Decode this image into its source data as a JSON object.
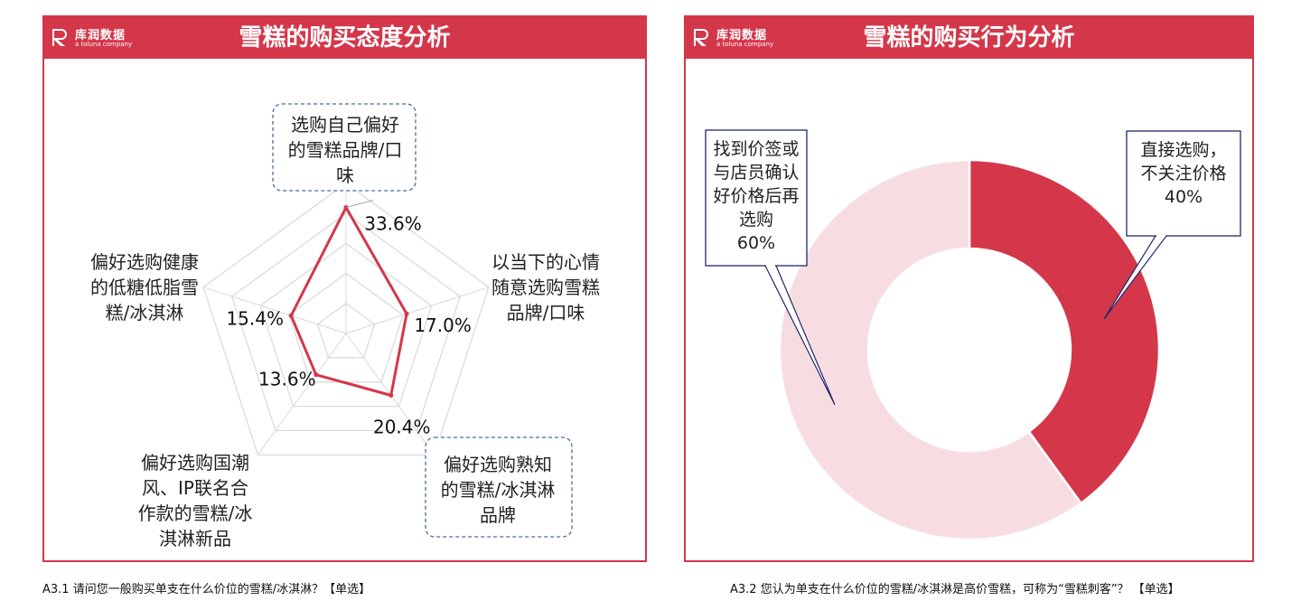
{
  "logo": {
    "brand": "库润数据",
    "sub": "a toluna company"
  },
  "left_panel": {
    "title": "雪糕的购买态度分析"
  },
  "right_panel": {
    "title": "雪糕的购买行为分析"
  },
  "footnotes": {
    "left": "A3.1  请问您一般购买单支在什么价位的雪糕/冰淇淋？【单选】",
    "right": "A3.2  您认为单支在什么价位的雪糕/冰淇淋是高价雪糕，可称为“雪糕刺客”？ 【单选】"
  },
  "colors": {
    "accent": "#d4374a",
    "light": "#f7dde1",
    "callout_border": "#1f2a6b",
    "dash_border": "#4a6aa5"
  },
  "chart_data": [
    {
      "type": "radar",
      "title": "雪糕的购买态度分析",
      "axes": [
        [
          "选购自己偏好",
          "的雪糕品牌/口",
          "味"
        ],
        [
          "以当下的心情",
          "随意选购雪糕",
          "品牌/口味"
        ],
        [
          "偏好选购熟知",
          "的雪糕/冰淇淋",
          "品牌"
        ],
        [
          "偏好选购国潮",
          "风、IP联名合",
          "作款的雪糕/冰",
          "淇淋新品"
        ],
        [
          "偏好选购健康",
          "的低糖低脂雪",
          "糕/冰淇淋"
        ]
      ],
      "values": [
        33.6,
        17.0,
        20.4,
        13.6,
        15.4
      ],
      "labels": [
        "33.6%",
        "17.0%",
        "20.4%",
        "13.6%",
        "15.4%"
      ],
      "rmax": 40,
      "gridlines": 5
    },
    {
      "type": "pie",
      "title": "雪糕的购买行为分析",
      "slices": [
        {
          "label": [
            "直接选购，",
            "不关注价格"
          ],
          "value": 40,
          "text": "40%"
        },
        {
          "label": [
            "找到价签或",
            "与店员确认",
            "好价格后再",
            "选购"
          ],
          "value": 60,
          "text": "60%"
        }
      ]
    }
  ]
}
